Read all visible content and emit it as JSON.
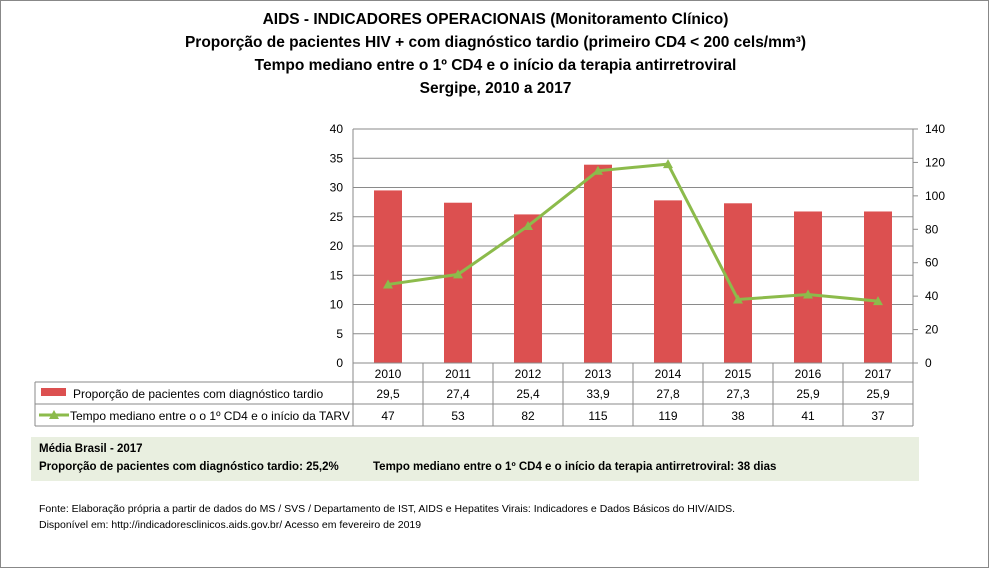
{
  "chart_data": {
    "type": "bar+line",
    "title": [
      "AIDS - INDICADORES OPERACIONAIS (Monitoramento Clínico)",
      "Proporção de pacientes HIV + com diagnóstico tardio (primeiro CD4 < 200 cels/mm³)",
      "Tempo mediano entre o 1º CD4 e o início da terapia antirretroviral",
      "Sergipe, 2010 a 2017"
    ],
    "categories": [
      "2010",
      "2011",
      "2012",
      "2013",
      "2014",
      "2015",
      "2016",
      "2017"
    ],
    "series": [
      {
        "name": "Proporção de pacientes com diagnóstico tardio",
        "type": "bar",
        "axis": "left",
        "color": "#dc5050",
        "values": [
          29.5,
          27.4,
          25.4,
          33.9,
          27.8,
          27.3,
          25.9,
          25.9
        ],
        "labels": [
          "29,5",
          "27,4",
          "25,4",
          "33,9",
          "27,8",
          "27,3",
          "25,9",
          "25,9"
        ]
      },
      {
        "name": "Tempo mediano entre o o 1º CD4 e o início da TARV",
        "type": "line",
        "axis": "right",
        "color": "#8cbb4b",
        "marker": "triangle",
        "values": [
          47,
          53,
          82,
          115,
          119,
          38,
          41,
          37
        ],
        "labels": [
          "47",
          "53",
          "82",
          "115",
          "119",
          "38",
          "41",
          "37"
        ]
      }
    ],
    "y_left": {
      "min": 0,
      "max": 40,
      "ticks": [
        "0",
        "5",
        "10",
        "15",
        "20",
        "25",
        "30",
        "35",
        "40"
      ]
    },
    "y_right": {
      "min": 0,
      "max": 140,
      "ticks": [
        "0",
        "20",
        "40",
        "60",
        "80",
        "100",
        "120",
        "140"
      ]
    },
    "grid": true,
    "legend": "data-table"
  },
  "brasil": {
    "heading": "Média Brasil  - 2017",
    "prop": "Proporção de pacientes com diagnóstico  tardio: 25,2%",
    "tempo": "Tempo mediano entre o 1º CD4 e o início da terapia antirretroviral: 38 dias"
  },
  "source": {
    "line1": "Fonte: Elaboração própria a partir de dados do  MS / SVS / Departamento de IST, AIDS e Hepatites Virais: Indicadores e Dados Básicos do HIV/AIDS.",
    "line2": "Disponível em: http://indicadoresclinicos.aids.gov.br/ Acesso em fevereiro de 2019"
  }
}
